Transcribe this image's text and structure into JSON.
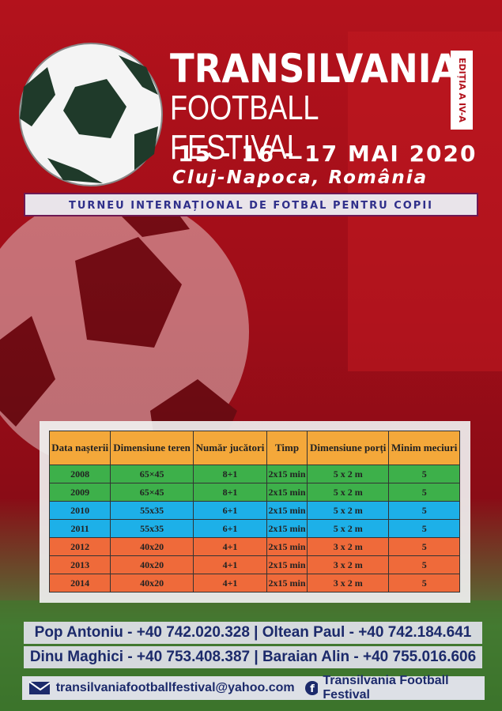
{
  "header": {
    "title": "TRANSILVANIA",
    "subtitle": "FOOTBALL FESTIVAL",
    "edition": "EDIȚIA A IV-A",
    "dates": "15 - 16 - 17 MAI 2020",
    "location": "Cluj-Napoca, România",
    "tagline": "TURNEU INTERNAȚIONAL DE FOTBAL PENTRU COPII"
  },
  "table": {
    "header": [
      "Data nașterii",
      "Dimensiune teren",
      "Număr jucători",
      "Timp",
      "Dimensiune porți",
      "Minim meciuri"
    ],
    "rows": [
      [
        "2008",
        "65×45",
        "8+1",
        "2x15 min",
        "5 x 2 m",
        "5"
      ],
      [
        "2009",
        "65×45",
        "8+1",
        "2x15 min",
        "5 x 2 m",
        "5"
      ],
      [
        "2010",
        "55x35",
        "6+1",
        "2x15 min",
        "5 x 2 m",
        "5"
      ],
      [
        "2011",
        "55x35",
        "6+1",
        "2x15 min",
        "5 x 2 m",
        "5"
      ],
      [
        "2012",
        "40x20",
        "4+1",
        "2x15 min",
        "3 x 2 m",
        "5"
      ],
      [
        "2013",
        "40x20",
        "4+1",
        "2x15 min",
        "3 x 2 m",
        "5"
      ],
      [
        "2014",
        "40x20",
        "4+1",
        "2x15 min",
        "3 x 2 m",
        "5"
      ]
    ]
  },
  "contacts": [
    "Pop Antoniu - +40 742.020.328 | Oltean Paul - +40 742.184.641",
    "Dinu Maghici - +40 753.408.387 | Baraian Alin - +40 755.016.606"
  ],
  "footer": {
    "email": "transilvaniafootballfestival@yahoo.com",
    "facebook": "Transilvania Football Festival"
  }
}
